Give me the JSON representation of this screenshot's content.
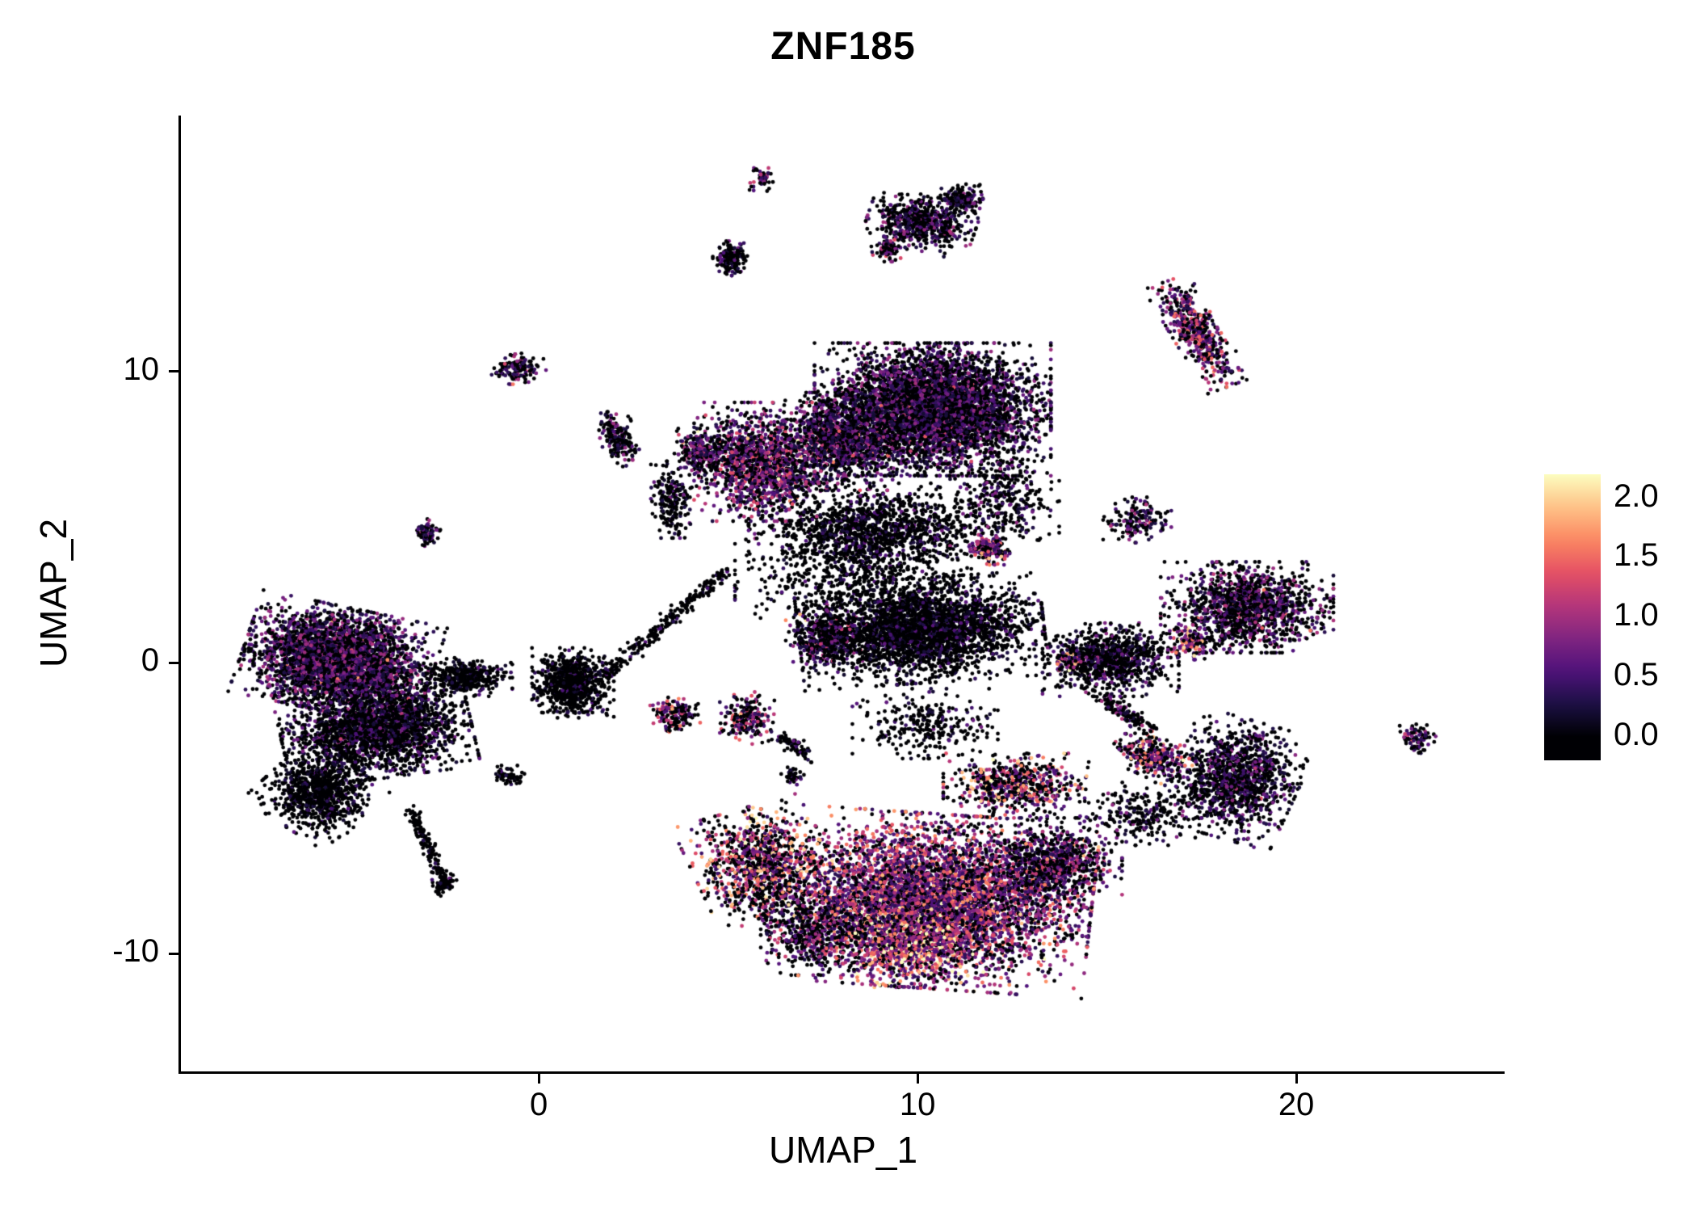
{
  "title": "ZNF185",
  "chart_data": {
    "type": "scatter",
    "title": "ZNF185",
    "xlabel": "UMAP_1",
    "ylabel": "UMAP_2",
    "xlim": [
      -9.45,
      25.5
    ],
    "ylim": [
      -14.05,
      18.8
    ],
    "x_ticks": [
      "0",
      "10",
      "20"
    ],
    "x_tick_values": [
      0,
      10,
      20
    ],
    "y_ticks": [
      "-10",
      "0",
      "10"
    ],
    "y_tick_values": [
      -10,
      0,
      10
    ],
    "grid": false,
    "background": "#ffffff",
    "point_encoding": "expression level (magma colormap, 0 = black / not expressed, 2.0+ = light orange)",
    "point_radius_px": 2.4,
    "seed": 42,
    "colorbar": {
      "position": "right",
      "ticks": [
        "2.0",
        "1.5",
        "1.0",
        "0.5",
        "0.0"
      ],
      "tick_values": [
        2.0,
        1.5,
        1.0,
        0.5,
        0.0
      ],
      "vmin": 0.0,
      "vmax": 2.2,
      "display_min": -0.2,
      "display_max": 2.2,
      "colormap": "magma",
      "stops": [
        "#000004",
        "#1c1044",
        "#4f127b",
        "#812581",
        "#b5367a",
        "#e55064",
        "#fb8761",
        "#fec287",
        "#fcfdbf"
      ]
    },
    "clusters": [
      {
        "shape": "blob",
        "name": "left-main",
        "cx": -5.3,
        "cy": 0.1,
        "rx": 2.1,
        "ry": 1.5,
        "rot": -15,
        "n": 3600,
        "frac": 0.55,
        "mean": 0.6
      },
      {
        "shape": "blob",
        "name": "left-lower",
        "cx": -4.3,
        "cy": -2.3,
        "rx": 2.1,
        "ry": 1.4,
        "rot": 10,
        "n": 2400,
        "frac": 0.3,
        "mean": 0.45
      },
      {
        "shape": "blob",
        "name": "left-tail",
        "cx": -5.8,
        "cy": -4.5,
        "rx": 1.2,
        "ry": 1.2,
        "rot": -40,
        "n": 900,
        "frac": 0.15,
        "mean": 0.35
      },
      {
        "shape": "blob",
        "name": "left-tail-tip",
        "cx": -2.5,
        "cy": -7.6,
        "rx": 0.3,
        "ry": 0.35,
        "rot": 0,
        "n": 70,
        "frac": 0.2,
        "mean": 0.5
      },
      {
        "shape": "blob",
        "name": "left-bridge",
        "cx": -1.9,
        "cy": -0.5,
        "rx": 1.0,
        "ry": 0.55,
        "rot": 0,
        "n": 400,
        "frac": 0.2,
        "mean": 0.4
      },
      {
        "shape": "blob",
        "name": "left-knob",
        "cx": 0.9,
        "cy": -0.7,
        "rx": 0.9,
        "ry": 1.0,
        "rot": 0,
        "n": 800,
        "frac": 0.12,
        "mean": 0.3
      },
      {
        "shape": "blob",
        "name": "topcenter-core",
        "cx": 10.4,
        "cy": 8.7,
        "rx": 2.6,
        "ry": 1.9,
        "rot": 0,
        "n": 5200,
        "frac": 0.5,
        "mean": 0.55
      },
      {
        "shape": "blob",
        "name": "topcenter-left",
        "cx": 5.9,
        "cy": 6.9,
        "rx": 1.5,
        "ry": 1.7,
        "rot": 0,
        "n": 1500,
        "frac": 0.62,
        "mean": 0.75
      },
      {
        "shape": "blob",
        "name": "topcenter-mid",
        "cx": 7.9,
        "cy": 7.6,
        "rx": 1.3,
        "ry": 1.4,
        "rot": 0,
        "n": 1100,
        "frac": 0.5,
        "mean": 0.6
      },
      {
        "shape": "blob",
        "name": "topcenter-low-spread",
        "cx": 8.9,
        "cy": 4.6,
        "rx": 2.8,
        "ry": 1.3,
        "rot": 0,
        "n": 1300,
        "frac": 0.22,
        "mean": 0.4
      },
      {
        "shape": "blob",
        "name": "small-column-3p5-5p6",
        "cx": 3.5,
        "cy": 5.6,
        "rx": 0.45,
        "ry": 1.1,
        "rot": 0,
        "n": 220,
        "frac": 0.25,
        "mean": 0.4
      },
      {
        "shape": "blob",
        "name": "small-4p3-7p2",
        "cx": 4.3,
        "cy": 7.2,
        "rx": 0.6,
        "ry": 0.7,
        "rot": 0,
        "n": 260,
        "frac": 0.45,
        "mean": 0.6
      },
      {
        "shape": "blob",
        "name": "central-black",
        "cx": 10.1,
        "cy": 1.1,
        "rx": 2.7,
        "ry": 1.5,
        "rot": 5,
        "n": 3000,
        "frac": 0.22,
        "mean": 0.35
      },
      {
        "shape": "blob",
        "name": "central-left-edge",
        "cx": 7.6,
        "cy": 0.9,
        "rx": 0.9,
        "ry": 0.9,
        "rot": 0,
        "n": 400,
        "frac": 0.45,
        "mean": 0.7
      },
      {
        "shape": "blob",
        "name": "central-pink-tip",
        "cx": 11.9,
        "cy": 3.9,
        "rx": 0.5,
        "ry": 0.45,
        "rot": 0,
        "n": 160,
        "frac": 0.7,
        "mean": 1.1
      },
      {
        "shape": "blob",
        "name": "bottom-main",
        "cx": 10.4,
        "cy": -8.2,
        "rx": 3.5,
        "ry": 2.5,
        "rot": -5,
        "n": 5200,
        "frac": 0.72,
        "mean": 0.95
      },
      {
        "shape": "blob",
        "name": "bottom-hotspot",
        "cx": 9.9,
        "cy": -9.6,
        "rx": 1.6,
        "ry": 1.3,
        "rot": 0,
        "n": 900,
        "frac": 0.85,
        "mean": 1.5
      },
      {
        "shape": "blob",
        "name": "bottom-left-arm",
        "cx": 5.9,
        "cy": -7.0,
        "rx": 1.5,
        "ry": 1.7,
        "rot": 20,
        "n": 1100,
        "frac": 0.5,
        "mean": 1.15
      },
      {
        "shape": "blob",
        "name": "bottom-left-fringe",
        "cx": 7.3,
        "cy": -9.3,
        "rx": 1.2,
        "ry": 1.2,
        "rot": 0,
        "n": 500,
        "frac": 0.35,
        "mean": 0.7
      },
      {
        "shape": "blob",
        "name": "bottom-right",
        "cx": 13.6,
        "cy": -6.9,
        "rx": 1.5,
        "ry": 1.3,
        "rot": 0,
        "n": 900,
        "frac": 0.5,
        "mean": 0.7
      },
      {
        "shape": "blob",
        "name": "bottom-top-streak",
        "cx": 12.6,
        "cy": -4.2,
        "rx": 1.6,
        "ry": 0.9,
        "rot": 0,
        "n": 650,
        "frac": 0.5,
        "mean": 1.1
      },
      {
        "shape": "blob",
        "name": "noise-mid-low",
        "cx": 10.2,
        "cy": -2.1,
        "rx": 1.6,
        "ry": 1.0,
        "rot": 0,
        "n": 280,
        "frac": 0.15,
        "mean": 0.4
      },
      {
        "shape": "blob",
        "name": "right-mid-1",
        "cx": 18.7,
        "cy": 1.9,
        "rx": 1.9,
        "ry": 1.3,
        "rot": 0,
        "n": 1400,
        "frac": 0.42,
        "mean": 0.6
      },
      {
        "shape": "blob",
        "name": "right-mid-1-pink",
        "cx": 17.2,
        "cy": 0.7,
        "rx": 0.45,
        "ry": 0.5,
        "rot": 0,
        "n": 130,
        "frac": 0.75,
        "mean": 1.2
      },
      {
        "shape": "blob",
        "name": "right-mid-2",
        "cx": 15.1,
        "cy": 0.1,
        "rx": 1.5,
        "ry": 1.05,
        "rot": 0,
        "n": 950,
        "frac": 0.3,
        "mean": 0.45
      },
      {
        "shape": "blob",
        "name": "right-mid-2-pink",
        "cx": 14.0,
        "cy": 0.0,
        "rx": 0.35,
        "ry": 0.4,
        "rot": 0,
        "n": 90,
        "frac": 0.7,
        "mean": 1.2
      },
      {
        "shape": "blob",
        "name": "right-lower",
        "cx": 18.4,
        "cy": -4.0,
        "rx": 1.4,
        "ry": 1.7,
        "rot": -20,
        "n": 1300,
        "frac": 0.35,
        "mean": 0.5
      },
      {
        "shape": "blob",
        "name": "right-lower-bridge",
        "cx": 16.2,
        "cy": -3.2,
        "rx": 0.9,
        "ry": 0.6,
        "rot": -30,
        "n": 300,
        "frac": 0.55,
        "mean": 1.05
      },
      {
        "shape": "blob",
        "name": "topright-diagonal",
        "cx": 17.4,
        "cy": 11.3,
        "rx": 0.55,
        "ry": 1.65,
        "rot": 25,
        "n": 520,
        "frac": 0.6,
        "mean": 0.85
      },
      {
        "shape": "blob",
        "name": "top-main",
        "cx": 10.1,
        "cy": 15.1,
        "rx": 1.2,
        "ry": 0.8,
        "rot": -15,
        "n": 650,
        "frac": 0.4,
        "mean": 0.55
      },
      {
        "shape": "blob",
        "name": "top-hook",
        "cx": 11.2,
        "cy": 15.9,
        "rx": 0.5,
        "ry": 0.45,
        "rot": 0,
        "n": 160,
        "frac": 0.35,
        "mean": 0.5
      },
      {
        "shape": "blob",
        "name": "top-left-tip",
        "cx": 9.2,
        "cy": 14.2,
        "rx": 0.35,
        "ry": 0.35,
        "rot": 0,
        "n": 90,
        "frac": 0.5,
        "mean": 0.8
      },
      {
        "shape": "blob",
        "name": "top-tiny",
        "cx": 5.9,
        "cy": 16.6,
        "rx": 0.28,
        "ry": 0.33,
        "rot": 0,
        "n": 50,
        "frac": 0.55,
        "mean": 0.8
      },
      {
        "shape": "blob",
        "name": "small-5-13p9",
        "cx": 5.05,
        "cy": 13.9,
        "rx": 0.38,
        "ry": 0.5,
        "rot": 0,
        "n": 160,
        "frac": 0.3,
        "mean": 0.45
      },
      {
        "shape": "blob",
        "name": "small-neg0p55-10p1",
        "cx": -0.55,
        "cy": 10.1,
        "rx": 0.6,
        "ry": 0.42,
        "rot": 10,
        "n": 150,
        "frac": 0.5,
        "mean": 0.7
      },
      {
        "shape": "blob",
        "name": "small-2p1-7p7",
        "cx": 2.1,
        "cy": 7.7,
        "rx": 0.4,
        "ry": 0.8,
        "rot": 15,
        "n": 200,
        "frac": 0.4,
        "mean": 0.55
      },
      {
        "shape": "blob",
        "name": "small-neg2p95-4p45",
        "cx": -2.95,
        "cy": 4.45,
        "rx": 0.3,
        "ry": 0.4,
        "rot": 0,
        "n": 80,
        "frac": 0.5,
        "mean": 0.6
      },
      {
        "shape": "blob",
        "name": "small-3p6-neg1p8",
        "cx": 3.6,
        "cy": -1.8,
        "rx": 0.55,
        "ry": 0.5,
        "rot": 0,
        "n": 160,
        "frac": 0.5,
        "mean": 0.9
      },
      {
        "shape": "blob",
        "name": "small-5p5-neg1p9",
        "cx": 5.5,
        "cy": -1.9,
        "rx": 0.6,
        "ry": 0.75,
        "rot": 0,
        "n": 210,
        "frac": 0.5,
        "mean": 0.8
      },
      {
        "shape": "blob",
        "name": "small-15p8-4p9",
        "cx": 15.8,
        "cy": 4.9,
        "rx": 0.75,
        "ry": 0.65,
        "rot": 0,
        "n": 160,
        "frac": 0.4,
        "mean": 0.6
      },
      {
        "shape": "blob",
        "name": "tiny-23p2-neg2p6",
        "cx": 23.2,
        "cy": -2.6,
        "rx": 0.4,
        "ry": 0.45,
        "rot": 0,
        "n": 90,
        "frac": 0.5,
        "mean": 0.7
      },
      {
        "shape": "blob",
        "name": "tiny-6p7-neg3p9",
        "cx": 6.7,
        "cy": -3.9,
        "rx": 0.25,
        "ry": 0.25,
        "rot": 0,
        "n": 45,
        "frac": 0.2,
        "mean": 0.4
      },
      {
        "shape": "blob",
        "name": "tiny-neg0p8-neg3p9",
        "cx": -0.8,
        "cy": -3.9,
        "rx": 0.35,
        "ry": 0.3,
        "rot": 0,
        "n": 60,
        "frac": 0.15,
        "mean": 0.3
      },
      {
        "shape": "blob",
        "name": "noise-mid-column",
        "cx": 8.3,
        "cy": 3.0,
        "rx": 2.6,
        "ry": 1.6,
        "rot": 0,
        "n": 600,
        "frac": 0.15,
        "mean": 0.35
      },
      {
        "shape": "blob",
        "name": "noise-mid-right",
        "cx": 12.3,
        "cy": 5.6,
        "rx": 1.2,
        "ry": 1.5,
        "rot": 0,
        "n": 350,
        "frac": 0.3,
        "mean": 0.5
      },
      {
        "shape": "blob",
        "name": "noise-bottomright-sparse",
        "cx": 15.9,
        "cy": -5.2,
        "rx": 1.2,
        "ry": 0.9,
        "rot": 0,
        "n": 220,
        "frac": 0.25,
        "mean": 0.5
      },
      {
        "shape": "line",
        "name": "trail-diagonal",
        "x1": 1.6,
        "y1": -0.6,
        "x2": 5.0,
        "y2": 3.2,
        "w": 0.22,
        "n": 270,
        "frac": 0.12,
        "mean": 0.35
      },
      {
        "shape": "line",
        "name": "trail-left-tail",
        "x1": -3.4,
        "y1": -5.0,
        "x2": -2.5,
        "y2": -7.5,
        "w": 0.18,
        "n": 150,
        "frac": 0.1,
        "mean": 0.3
      },
      {
        "shape": "line",
        "name": "trail-right-mid",
        "x1": 14.9,
        "y1": -1.3,
        "x2": 16.2,
        "y2": -2.3,
        "w": 0.25,
        "n": 140,
        "frac": 0.3,
        "mean": 0.6
      },
      {
        "shape": "line",
        "name": "trail-small-q",
        "x1": 6.4,
        "y1": -2.5,
        "x2": 7.2,
        "y2": -3.3,
        "w": 0.2,
        "n": 80,
        "frac": 0.2,
        "mean": 0.4
      }
    ]
  }
}
